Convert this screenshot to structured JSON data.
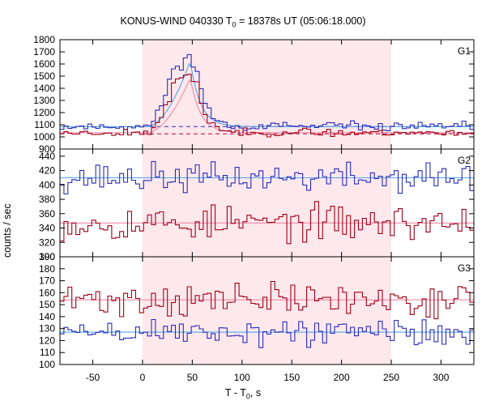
{
  "chart_data": {
    "type": "line",
    "title": {
      "prefix": "KONUS-WIND 040330 T",
      "sub": "0",
      "suffix": " = 18378s UT (05:06:18.000)"
    },
    "xlabel": {
      "prefix": "T - T",
      "sub": "0",
      "suffix": ", s"
    },
    "ylabel": "counts / sec",
    "x_ticks": [
      -50,
      0,
      50,
      100,
      150,
      200,
      250,
      300
    ],
    "xlim": [
      -83,
      333
    ],
    "shaded_interval": [
      0,
      250
    ],
    "colors": {
      "shade": "#fde8ec",
      "blue": "#2b2bb8",
      "red": "#a00018",
      "cyan": "#4fa6e8",
      "pink": "#f08aa8",
      "ref_blue": "#2b2bb8",
      "ref_red": "#c0002a"
    },
    "panels": [
      {
        "name": "G1",
        "ylim": [
          900,
          1800
        ],
        "y_ticks": [
          900,
          1000,
          1100,
          1200,
          1300,
          1400,
          1500,
          1600,
          1700,
          1800
        ],
        "series": [
          {
            "color": "blue",
            "base": 1085,
            "noise": 18,
            "peak": 560,
            "peak_shape": "pulse",
            "seed": 11
          },
          {
            "color": "red",
            "base": 1035,
            "noise": 15,
            "peak": 460,
            "peak_shape": "pulse",
            "seed": 23
          }
        ],
        "fits": [
          {
            "color": "cyan",
            "base": 1085,
            "peak": 540
          },
          {
            "color": "pink",
            "base": 1035,
            "peak": 450
          }
        ],
        "ref_lines": [
          {
            "y": 1085,
            "color": "ref_blue"
          },
          {
            "y": 1025,
            "color": "ref_red"
          }
        ]
      },
      {
        "name": "G2",
        "ylim": [
          300,
          450
        ],
        "y_ticks": [
          300,
          320,
          340,
          360,
          380,
          400,
          420,
          440
        ],
        "series": [
          {
            "color": "blue",
            "base": 410,
            "noise": 10,
            "seed": 37
          },
          {
            "color": "red",
            "base": 347,
            "noise": 12,
            "seed": 53
          }
        ],
        "fits": [
          {
            "color": "cyan",
            "base": 410
          },
          {
            "color": "pink",
            "base": 347
          }
        ]
      },
      {
        "name": "G3",
        "ylim": [
          100,
          190
        ],
        "y_ticks": [
          100,
          110,
          120,
          130,
          140,
          150,
          160,
          170,
          180,
          190
        ],
        "series": [
          {
            "color": "red",
            "base": 154,
            "noise": 7,
            "seed": 71
          },
          {
            "color": "blue",
            "base": 127,
            "noise": 6,
            "seed": 89
          }
        ],
        "fits": [
          {
            "color": "cyan",
            "base": 127
          },
          {
            "color": "pink",
            "base": 154
          }
        ]
      }
    ]
  }
}
